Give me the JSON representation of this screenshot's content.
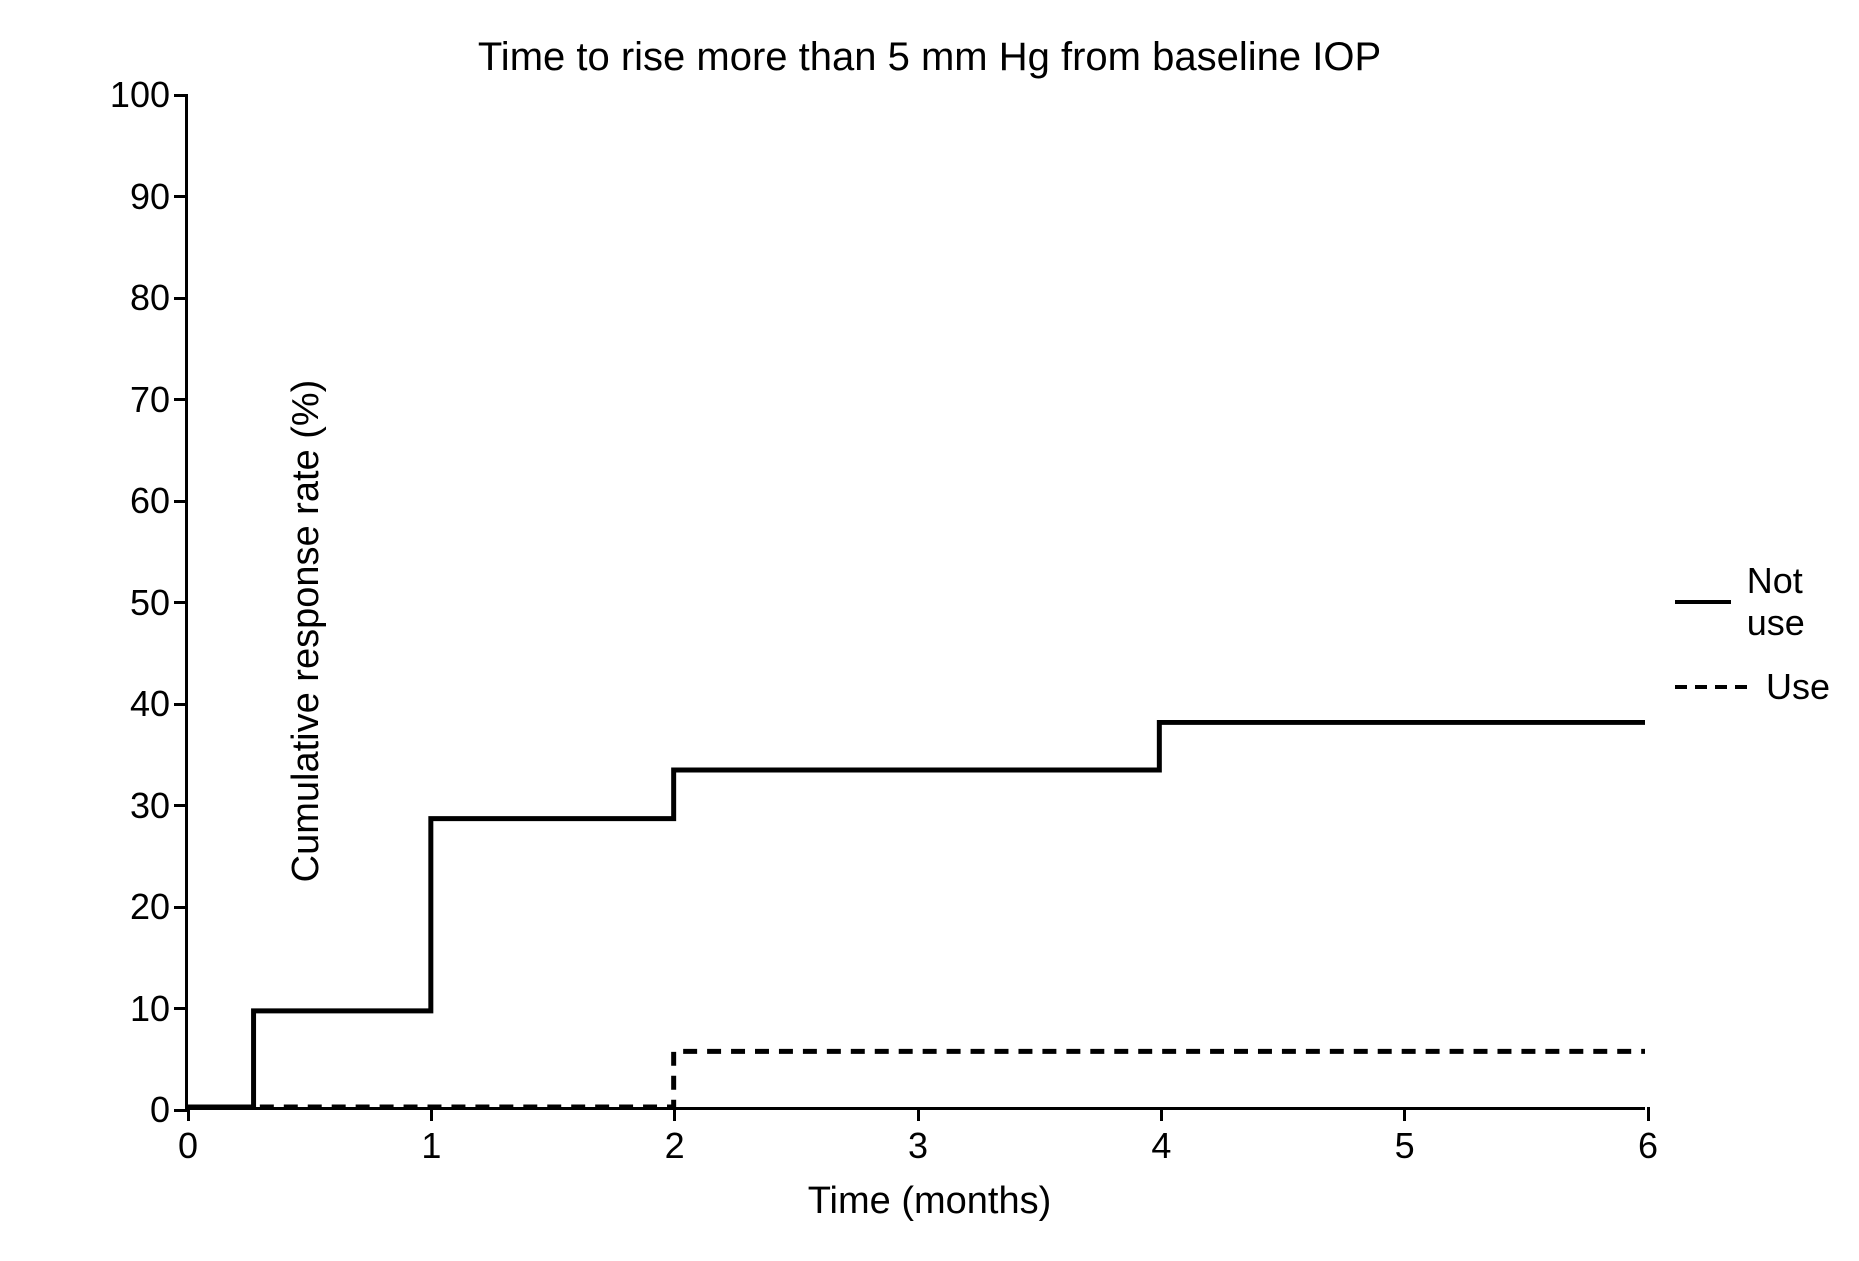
{
  "chart": {
    "type": "step-line",
    "title": "Time to rise more than 5 mm Hg from baseline IOP",
    "title_fontsize": 40,
    "background_color": "#ffffff",
    "axis_color": "#000000",
    "line_color": "#000000",
    "line_width": 5,
    "dash_pattern": "14 10",
    "x_axis": {
      "title": "Time (months)",
      "xlim": [
        0,
        6
      ],
      "ticks": [
        0,
        1,
        2,
        3,
        4,
        5,
        6
      ],
      "label_fontsize": 36,
      "title_fontsize": 38
    },
    "y_axis": {
      "title": "Cumulative response rate (%)",
      "ylim": [
        0,
        100
      ],
      "ticks": [
        0,
        10,
        20,
        30,
        40,
        50,
        60,
        70,
        80,
        90,
        100
      ],
      "label_fontsize": 36,
      "title_fontsize": 38
    },
    "series": [
      {
        "name": "Not use",
        "style": "solid",
        "points": [
          {
            "x": 0,
            "y": 0
          },
          {
            "x": 0.27,
            "y": 0
          },
          {
            "x": 0.27,
            "y": 9.5
          },
          {
            "x": 1,
            "y": 9.5
          },
          {
            "x": 1,
            "y": 28.5
          },
          {
            "x": 2,
            "y": 28.5
          },
          {
            "x": 2,
            "y": 33.3
          },
          {
            "x": 4,
            "y": 33.3
          },
          {
            "x": 4,
            "y": 38
          },
          {
            "x": 6,
            "y": 38
          }
        ]
      },
      {
        "name": "Use",
        "style": "dashed",
        "points": [
          {
            "x": 0,
            "y": 0
          },
          {
            "x": 2,
            "y": 0
          },
          {
            "x": 2,
            "y": 5.5
          },
          {
            "x": 6,
            "y": 5.5
          }
        ]
      }
    ],
    "legend": {
      "items": [
        {
          "label": "Not use",
          "style": "solid"
        },
        {
          "label": "Use",
          "style": "dashed"
        }
      ]
    }
  }
}
